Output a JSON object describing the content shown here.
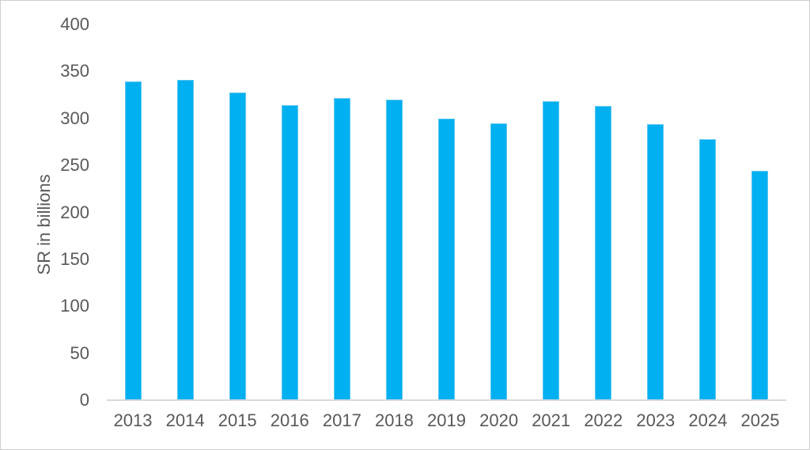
{
  "chart_data": {
    "type": "bar",
    "title": "",
    "xlabel": "",
    "ylabel": "SR in billions",
    "categories": [
      "2013",
      "2014",
      "2015",
      "2016",
      "2017",
      "2018",
      "2019",
      "2020",
      "2021",
      "2022",
      "2023",
      "2024",
      "2025"
    ],
    "values": [
      339,
      341,
      328,
      314,
      322,
      320,
      300,
      295,
      318,
      313,
      294,
      278,
      244
    ],
    "ylim": [
      0,
      400
    ],
    "yticks": [
      0,
      50,
      100,
      150,
      200,
      250,
      300,
      350,
      400
    ],
    "grid": false,
    "legend": null
  },
  "colors": {
    "bar_fill": "#00B0F0",
    "bar_edge": "#5BC8F2",
    "axis_text": "#595959",
    "axis_line": "#D9D9D9",
    "frame_border": "#CFCFCF",
    "background": "#FFFFFF"
  }
}
